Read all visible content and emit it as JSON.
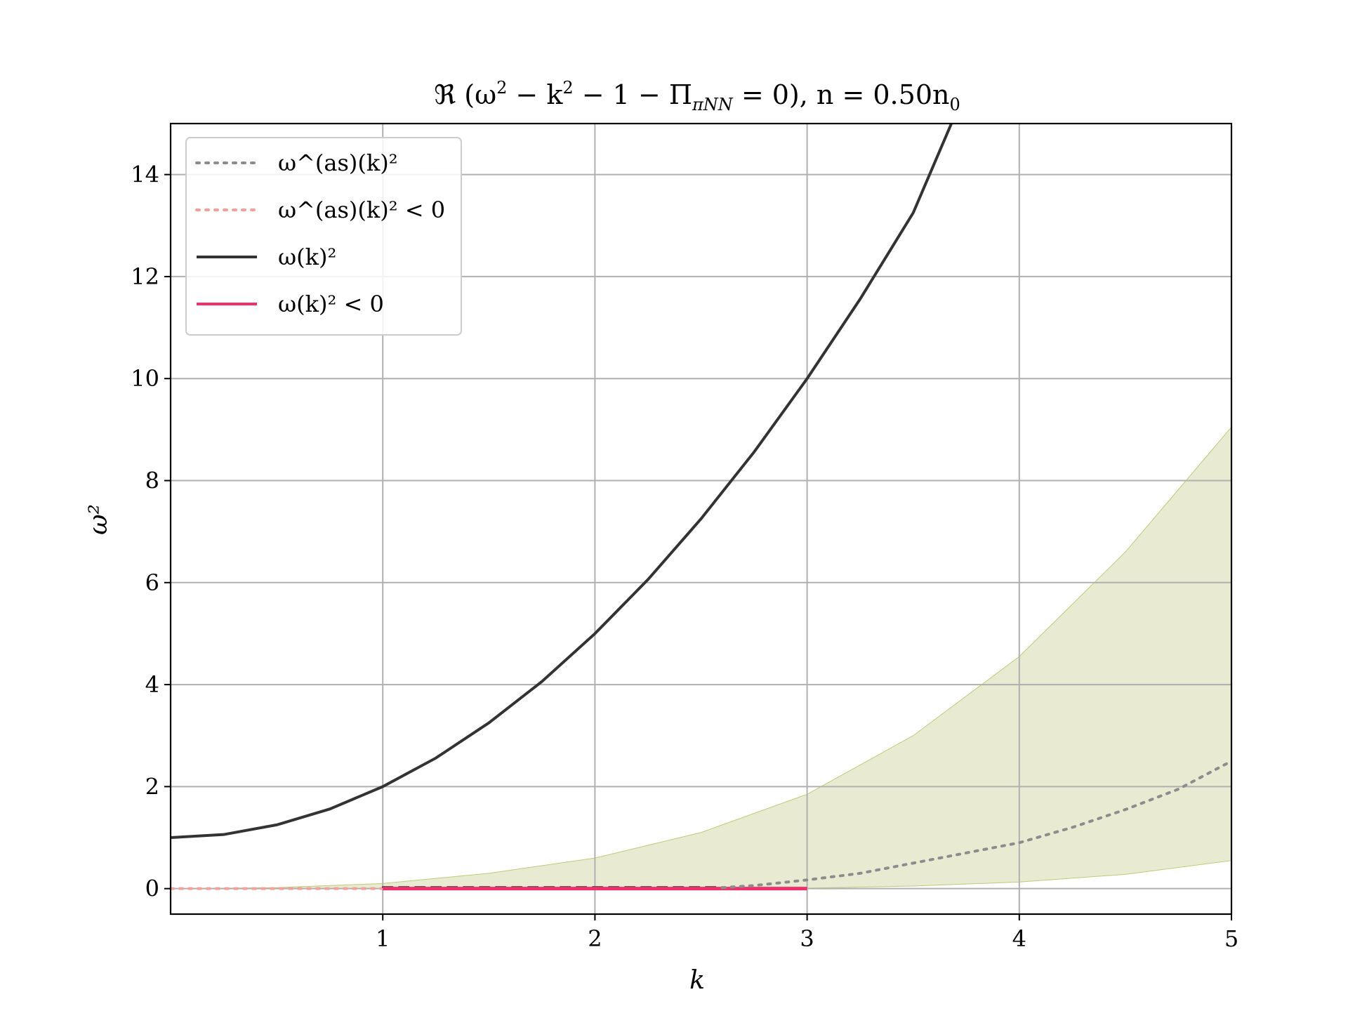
{
  "chart_data": {
    "type": "line",
    "title": "ℜ (ω² − k² − 1 − Π_πNN = 0), n = 0.50n₀",
    "title_parts": {
      "prefix": "ℜ (ω",
      "sq1": "2",
      "mid1": " − k",
      "sq2": "2",
      "mid2": " − 1 − Π",
      "sub": "πNN",
      "suffix": " = 0), n = 0.50n",
      "sub0": "0"
    },
    "xlabel": "k",
    "ylabel": "ω²",
    "xlim": [
      0,
      5
    ],
    "ylim": [
      -0.5,
      15
    ],
    "xticks": [
      1,
      2,
      3,
      4,
      5
    ],
    "yticks": [
      0,
      2,
      4,
      6,
      8,
      10,
      12,
      14
    ],
    "grid": true,
    "legend_position": "top-left",
    "colors": {
      "asymptotic": "#8c8c8c",
      "asymptotic_negative": "#f4a09a",
      "omega": "#333333",
      "omega_negative": "#f0306a",
      "band": "#e8ebd2",
      "band_edge": "#bccb7a",
      "grid": "#b0b0b0"
    },
    "legend": [
      {
        "label": "ω^(as)(k)²",
        "style": "dotted",
        "color": "#8c8c8c"
      },
      {
        "label": "ω^(as)(k)² < 0",
        "style": "dotted",
        "color": "#f4a09a"
      },
      {
        "label": "ω(k)²",
        "style": "solid",
        "color": "#333333"
      },
      {
        "label": "ω(k)² < 0",
        "style": "solid",
        "color": "#f0306a"
      }
    ],
    "series": [
      {
        "name": "ω(k)²",
        "style": "solid",
        "x": [
          0,
          0.25,
          0.5,
          0.75,
          1.0,
          1.25,
          1.5,
          1.75,
          2.0,
          2.25,
          2.5,
          2.75,
          3.0,
          3.25,
          3.5,
          3.68
        ],
        "y": [
          1.0,
          1.06,
          1.25,
          1.56,
          2.0,
          2.56,
          3.25,
          4.06,
          5.0,
          6.06,
          7.25,
          8.56,
          10.0,
          11.56,
          13.25,
          15.0
        ]
      },
      {
        "name": "ω^(as)(k)²",
        "style": "dotted",
        "x": [
          2.6,
          2.75,
          3.0,
          3.25,
          3.5,
          3.75,
          4.0,
          4.25,
          4.5,
          4.75,
          5.0
        ],
        "y": [
          0.02,
          0.06,
          0.17,
          0.3,
          0.5,
          0.7,
          0.9,
          1.2,
          1.55,
          1.95,
          2.5
        ]
      },
      {
        "name": "ω^(as)(k)² < 0",
        "style": "dotted",
        "x": [
          0,
          1.0
        ],
        "y": [
          0,
          0
        ]
      },
      {
        "name": "ω(k)² < 0",
        "style": "solid",
        "x": [
          1.0,
          3.0
        ],
        "y": [
          0,
          0
        ]
      },
      {
        "name": "dashed",
        "style": "dashed",
        "x": [
          1.0,
          2.6
        ],
        "y": [
          0.03,
          0.03
        ]
      }
    ],
    "band": {
      "x": [
        0,
        0.5,
        1.0,
        1.5,
        2.0,
        2.5,
        3.0,
        3.5,
        4.0,
        4.5,
        5.0
      ],
      "upper": [
        0.0,
        0.02,
        0.1,
        0.3,
        0.6,
        1.1,
        1.85,
        3.0,
        4.55,
        6.6,
        9.05
      ],
      "lower": [
        0.0,
        0.0,
        0.0,
        0.0,
        0.0,
        0.0,
        0.01,
        0.05,
        0.13,
        0.28,
        0.55
      ]
    }
  }
}
